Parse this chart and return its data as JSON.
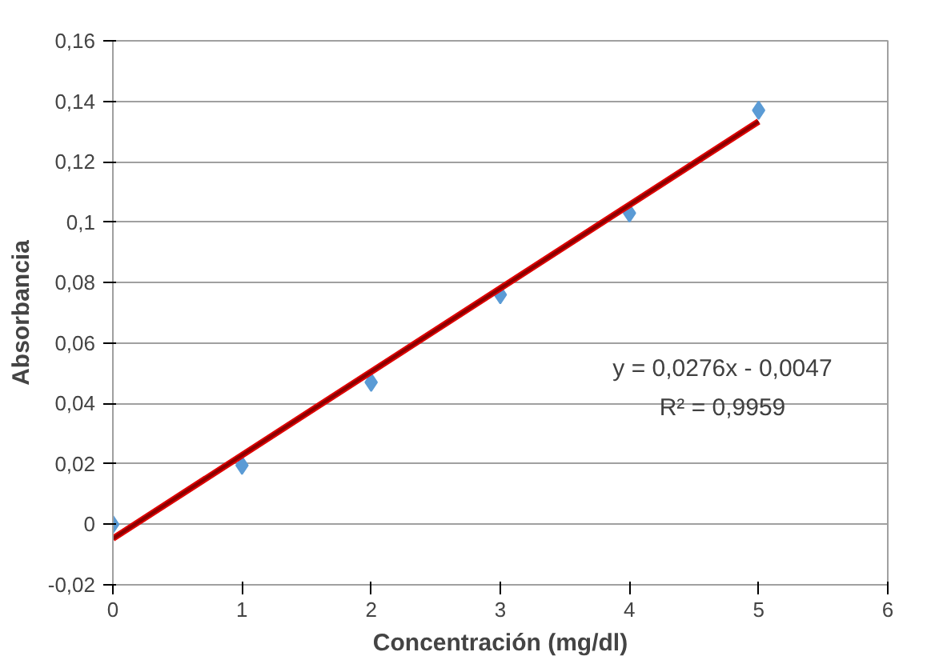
{
  "chart_data": {
    "type": "scatter",
    "xlabel": "Concentración (mg/dl)",
    "ylabel": "Absorbancia",
    "series": [
      {
        "color": "#5b9bd5",
        "marker": "diamond",
        "x": [
          0,
          1,
          2,
          3,
          4,
          5
        ],
        "values": [
          0,
          0.0195,
          0.047,
          0.076,
          0.103,
          0.137
        ]
      },
      {
        "type": "line",
        "color": "#8b0000",
        "marker": "none",
        "x": [
          0,
          5
        ],
        "values": [
          -0.0047,
          0.1333
        ]
      }
    ],
    "xlim": [
      0,
      6
    ],
    "xticks": [
      0,
      1,
      2,
      3,
      4,
      5,
      6
    ],
    "ylim": [
      -0.02,
      0.16
    ],
    "yticks": [
      {
        "value": -0.02,
        "label": "-0,02"
      },
      {
        "value": 0,
        "label": "0"
      },
      {
        "value": 0.02,
        "label": "0,02"
      },
      {
        "value": 0.04,
        "label": "0,04"
      },
      {
        "value": 0.06,
        "label": "0,06"
      },
      {
        "value": 0.08,
        "label": "0,08"
      },
      {
        "value": 0.1,
        "label": "0,1"
      },
      {
        "value": 0.12,
        "label": "0,12"
      },
      {
        "value": 0.14,
        "label": "0,14"
      },
      {
        "value": 0.16,
        "label": "0,16"
      }
    ],
    "annotations": [
      "y = 0,0276x - 0,0047",
      "R² = 0,9959"
    ],
    "grid": "y"
  }
}
